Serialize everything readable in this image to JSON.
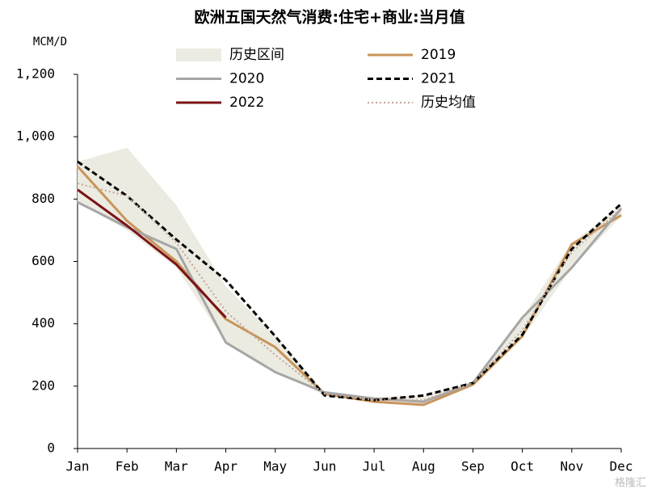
{
  "chart_data": {
    "type": "line",
    "title": "欧洲五国天然气消费:住宅+商业:当月值",
    "y_axis_label": "MCM/D",
    "categories": [
      "Jan",
      "Feb",
      "Mar",
      "Apr",
      "May",
      "Jun",
      "Jul",
      "Aug",
      "Sep",
      "Oct",
      "Nov",
      "Dec"
    ],
    "ylim": [
      0,
      1200
    ],
    "yticks": [
      0,
      200,
      400,
      600,
      800,
      {
        "value": 1000,
        "label": "1,000"
      },
      {
        "value": 1200,
        "label": "1,200"
      }
    ],
    "grid": false,
    "series": [
      {
        "name": "历史区间",
        "color": "#ecebe2",
        "style": "range",
        "values": [
          920,
          965,
          780,
          520,
          360,
          180,
          165,
          170,
          215,
          420,
          660,
          780
        ],
        "lower": [
          790,
          700,
          580,
          340,
          250,
          170,
          150,
          140,
          205,
          355,
          580,
          745
        ]
      },
      {
        "name": "2019",
        "color": "#c8955a",
        "style": "solid",
        "values": [
          905,
          730,
          600,
          415,
          325,
          175,
          150,
          140,
          205,
          360,
          655,
          748
        ]
      },
      {
        "name": "2020",
        "color": "#a6a6a6",
        "style": "solid",
        "values": [
          790,
          710,
          640,
          340,
          245,
          180,
          160,
          150,
          210,
          420,
          580,
          770
        ]
      },
      {
        "name": "2021",
        "color": "#000000",
        "style": "dashed",
        "values": [
          920,
          810,
          670,
          540,
          360,
          170,
          155,
          170,
          210,
          365,
          640,
          785
        ]
      },
      {
        "name": "2022",
        "color": "#7b1416",
        "style": "solid",
        "values": [
          830,
          715,
          590,
          420,
          null,
          null,
          null,
          null,
          null,
          null,
          null,
          null
        ]
      },
      {
        "name": "历史均值",
        "color": "#c4a494",
        "style": "dotted",
        "values": [
          850,
          810,
          660,
          440,
          300,
          175,
          155,
          155,
          210,
          380,
          630,
          770
        ]
      }
    ],
    "watermark": "格隆汇"
  }
}
